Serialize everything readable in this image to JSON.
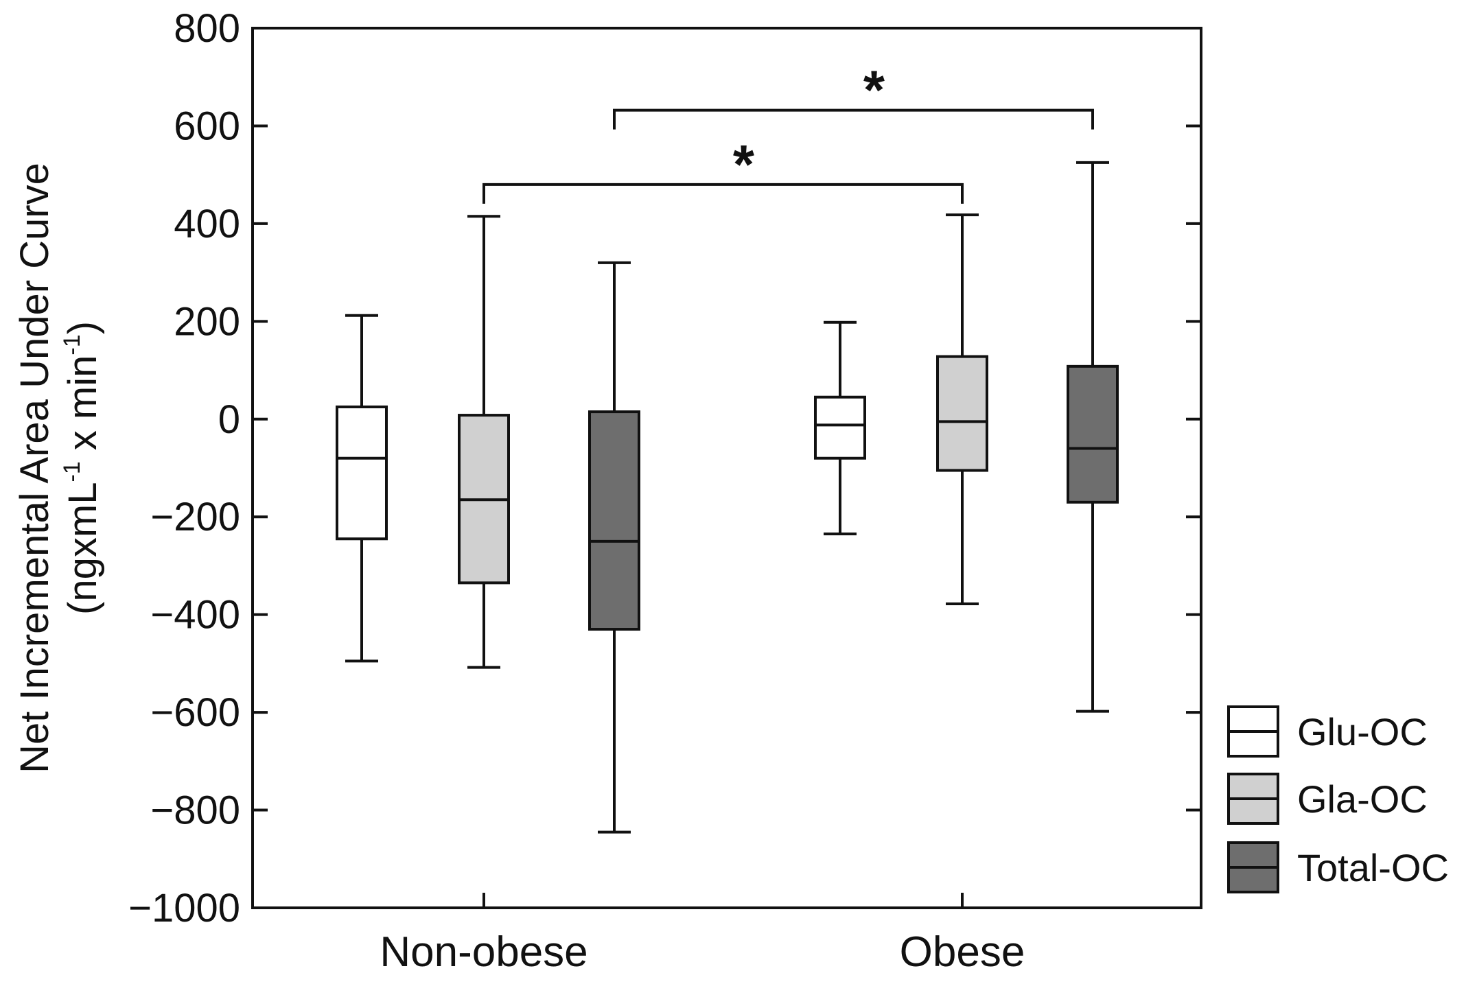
{
  "chart_data": {
    "type": "box",
    "categories": [
      "Non-obese",
      "Obese"
    ],
    "ylim": [
      -1000,
      800
    ],
    "yticks": [
      800,
      600,
      400,
      200,
      0,
      -200,
      -400,
      -600,
      -800,
      -1000
    ],
    "ytick_labels": [
      "800",
      "600",
      "400",
      "200",
      "0",
      "−200",
      "−400",
      "−600",
      "−800",
      "−1000"
    ],
    "ylabel_line1": "Net Incremental Area Under Curve",
    "ylabel_line2_pre": "(ngxmL",
    "ylabel_sup1": "-1",
    "ylabel_line2_mid": " x min",
    "ylabel_sup2": "-1",
    "ylabel_line2_post": ")",
    "xlabel": "",
    "series": [
      {
        "name": "Glu-OC",
        "color": "#ffffff",
        "boxes": [
          {
            "category": "Non-obese",
            "min": -495,
            "q1": -245,
            "median": -80,
            "q3": 25,
            "max": 212
          },
          {
            "category": "Obese",
            "min": -235,
            "q1": -80,
            "median": -12,
            "q3": 45,
            "max": 198
          }
        ]
      },
      {
        "name": "Gla-OC",
        "color": "#d0d0d0",
        "boxes": [
          {
            "category": "Non-obese",
            "min": -508,
            "q1": -335,
            "median": -165,
            "q3": 8,
            "max": 415
          },
          {
            "category": "Obese",
            "min": -378,
            "q1": -105,
            "median": -5,
            "q3": 128,
            "max": 418
          }
        ]
      },
      {
        "name": "Total-OC",
        "color": "#6e6e6e",
        "boxes": [
          {
            "category": "Non-obese",
            "min": -845,
            "q1": -430,
            "median": -250,
            "q3": 15,
            "max": 320
          },
          {
            "category": "Obese",
            "min": -598,
            "q1": -170,
            "median": -60,
            "q3": 108,
            "max": 525
          }
        ]
      }
    ],
    "annotations": [
      {
        "text": "*",
        "from": {
          "category": "Non-obese",
          "series": "Gla-OC"
        },
        "to": {
          "category": "Obese",
          "series": "Gla-OC"
        },
        "y": 480
      },
      {
        "text": "*",
        "from": {
          "category": "Non-obese",
          "series": "Total-OC"
        },
        "to": {
          "category": "Obese",
          "series": "Total-OC"
        },
        "y": 632
      }
    ],
    "legend_position": "right-bottom"
  }
}
